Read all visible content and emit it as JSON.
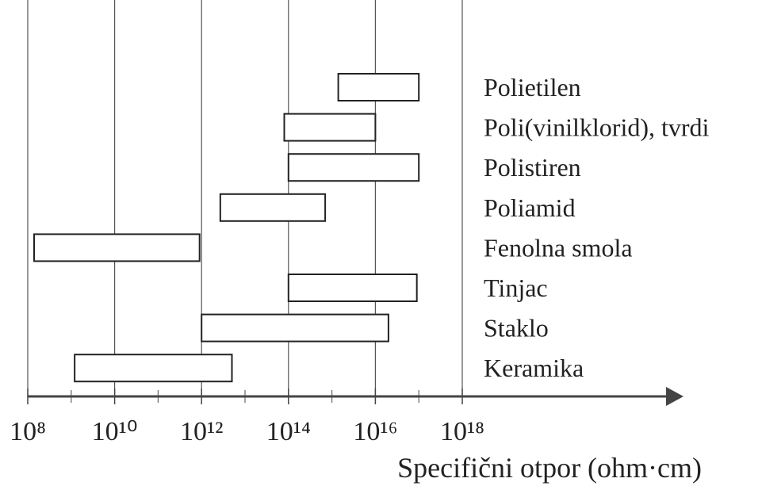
{
  "chart_data": {
    "type": "range-bar",
    "x_label": "Specifični otpor (ohm·cm)",
    "categories": [
      "Polietilen",
      "Poli(vinilklorid), tvrdi",
      "Polistiren",
      "Poliamid",
      "Fenolna smola",
      "Tinjac",
      "Staklo",
      "Keramika"
    ],
    "starts": [
      1400000000000000.0,
      80000000000000.0,
      100000000000000.0,
      2700000000000.0,
      140000000.0,
      100000000000000.0,
      1000000000000.0,
      1200000000.0
    ],
    "ends": [
      1e+17,
      1e+16,
      1e+17,
      700000000000000.0,
      900000000000.0,
      9e+16,
      2e+16,
      5000000000000.0
    ],
    "xscale": "log",
    "xlim": [
      100000000.0,
      1e+18
    ],
    "xticks": [
      {
        "value": 100000000.0,
        "label": "10⁸"
      },
      {
        "value": 10000000000.0,
        "label": "10¹⁰"
      },
      {
        "value": 1000000000000.0,
        "label": "10¹²"
      },
      {
        "value": 100000000000000.0,
        "label": "10¹⁴"
      },
      {
        "value": 1e+16,
        "label": "10¹⁶"
      },
      {
        "value": 1e+18,
        "label": "10¹⁸"
      }
    ],
    "xminor": [
      1000000000.0,
      100000000000.0,
      10000000000000.0,
      1000000000000000.0,
      1e+17
    ],
    "grid": true,
    "color": "#ffffff"
  }
}
